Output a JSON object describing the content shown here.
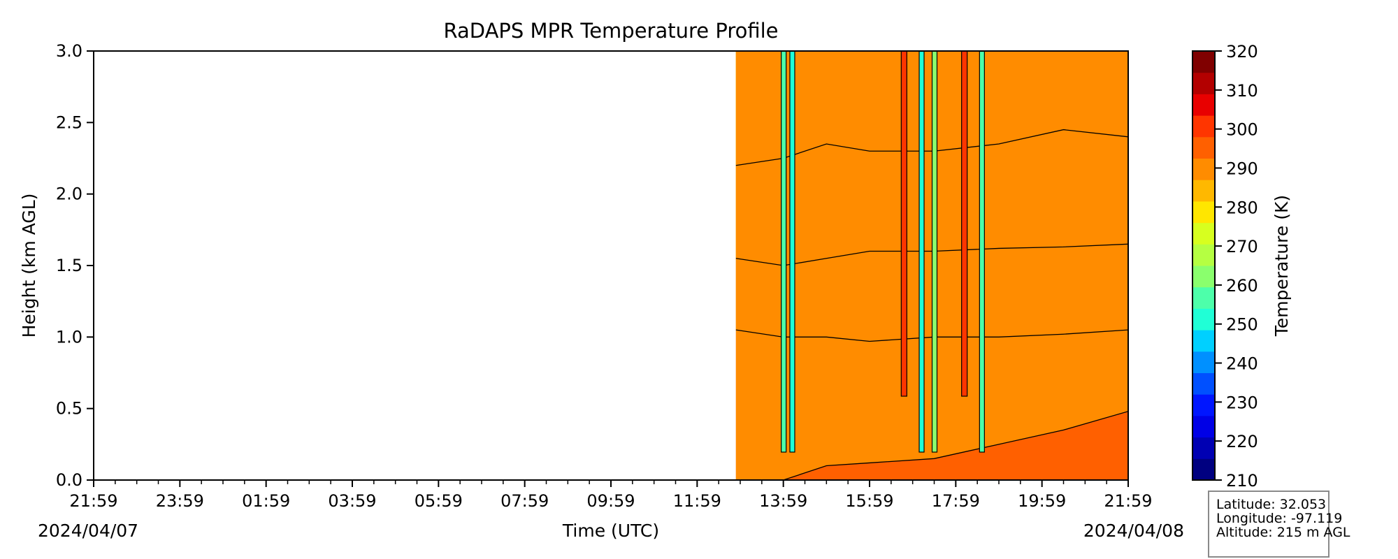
{
  "chart_data": {
    "type": "heatmap",
    "title": "RaDAPS MPR Temperature Profile",
    "xlabel": "Time (UTC)",
    "ylabel": "Height (km AGL)",
    "x_ticks": [
      "21:59",
      "23:59",
      "01:59",
      "03:59",
      "05:59",
      "07:59",
      "09:59",
      "11:59",
      "13:59",
      "15:59",
      "17:59",
      "19:59",
      "21:59"
    ],
    "x_range_hours": [
      0,
      24
    ],
    "date_start": "2024/04/07",
    "date_end": "2024/04/08",
    "y_ticks": [
      "0.0",
      "0.5",
      "1.0",
      "1.5",
      "2.0",
      "2.5",
      "3.0"
    ],
    "ylim": [
      0,
      3
    ],
    "data_start_hour": 14.9,
    "colorbar": {
      "label": "Temperature (K)",
      "range": [
        210,
        320
      ],
      "step": 5,
      "ticks": [
        "210",
        "220",
        "230",
        "240",
        "250",
        "260",
        "270",
        "280",
        "290",
        "300",
        "310",
        "320"
      ],
      "colors": [
        "#000080",
        "#0000b3",
        "#0000e6",
        "#0016ff",
        "#0050ff",
        "#0090ff",
        "#00d0ff",
        "#20ffd6",
        "#4dffaa",
        "#8aff6d",
        "#b5ff42",
        "#d7ff1f",
        "#ffe600",
        "#ffb800",
        "#ff8c00",
        "#ff6000",
        "#ff3500",
        "#e80000",
        "#b30000",
        "#800000"
      ]
    },
    "temperature_bands": [
      {
        "range": [
          300,
          305
        ],
        "color": "#ff6000",
        "boundary_km": [
          0.0,
          0.0,
          0.1,
          0.12,
          0.15,
          0.25,
          0.35,
          0.48
        ]
      },
      {
        "range": [
          295,
          300
        ],
        "color": "#ff8c00",
        "boundary_km": [
          1.05,
          1.0,
          1.0,
          0.97,
          1.0,
          1.0,
          1.02,
          1.05
        ]
      },
      {
        "range": [
          290,
          295
        ],
        "color": "#ffb800",
        "boundary_km": [
          1.55,
          1.5,
          1.55,
          1.6,
          1.6,
          1.62,
          1.63,
          1.65
        ]
      },
      {
        "range": [
          285,
          290
        ],
        "color": "#ffe600",
        "boundary_km": [
          2.2,
          2.25,
          2.35,
          2.3,
          2.3,
          2.35,
          2.45,
          2.4
        ]
      },
      {
        "range": [
          280,
          285
        ],
        "color": "#d7ff1f",
        "boundary_km": [
          3.0,
          3.0,
          3.0,
          3.0,
          3.0,
          3.0,
          3.0,
          3.0
        ]
      }
    ],
    "band_boundary_hours": [
      14.9,
      16,
      17,
      18,
      19.5,
      21,
      22.5,
      24
    ],
    "cold_spikes": [
      {
        "hour": 16.0,
        "color": "#4dffaa"
      },
      {
        "hour": 16.2,
        "color": "#20ffd6"
      },
      {
        "hour": 19.2,
        "color": "#20ffd6"
      },
      {
        "hour": 19.5,
        "color": "#8aff6d"
      },
      {
        "hour": 20.6,
        "color": "#4dffaa"
      }
    ],
    "warm_spikes": [
      {
        "hour": 18.8,
        "color": "#ff3500"
      },
      {
        "hour": 20.2,
        "color": "#ff3500"
      }
    ]
  },
  "info": {
    "latitude": "Latitude: 32.053",
    "longitude": "Longitude: -97.119",
    "altitude": "Altitude: 215 m AGL"
  }
}
